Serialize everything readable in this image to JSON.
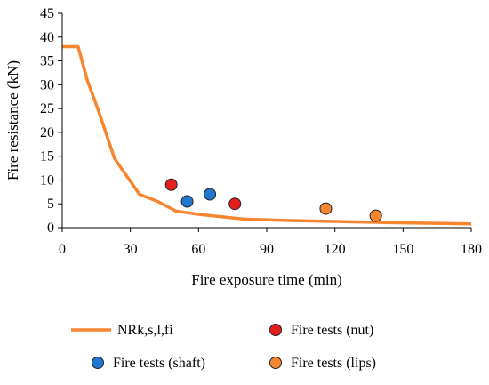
{
  "chart_data": {
    "type": "line",
    "title": "",
    "xlabel": "Fire exposure time (min)",
    "ylabel": "Fire resistance (kN)",
    "xlim": [
      0,
      180
    ],
    "ylim": [
      0,
      45
    ],
    "x_ticks": [
      "0",
      "30",
      "60",
      "90",
      "120",
      "150",
      "180"
    ],
    "y_ticks": [
      "0",
      "5",
      "10",
      "15",
      "20",
      "25",
      "30",
      "35",
      "40",
      "45"
    ],
    "grid": false,
    "legend_position": "bottom",
    "series": [
      {
        "name": "NRk,s,l,fi",
        "kind": "line",
        "color": "#f5852f",
        "points": [
          [
            0,
            38
          ],
          [
            7,
            38
          ],
          [
            11,
            31
          ],
          [
            16,
            24.5
          ],
          [
            23,
            14.5
          ],
          [
            34,
            7
          ],
          [
            42,
            5.5
          ],
          [
            50,
            3.5
          ],
          [
            60,
            2.8
          ],
          [
            80,
            1.8
          ],
          [
            100,
            1.5
          ],
          [
            120,
            1.3
          ],
          [
            150,
            1.0
          ],
          [
            180,
            0.8
          ]
        ]
      },
      {
        "name": "Fire tests (nut)",
        "kind": "scatter",
        "color": "#e41e1e",
        "points": [
          [
            48,
            9
          ],
          [
            76,
            5
          ]
        ]
      },
      {
        "name": "Fire tests (shaft)",
        "kind": "scatter",
        "color": "#1f77d0",
        "points": [
          [
            55,
            5.5
          ],
          [
            65,
            7
          ]
        ]
      },
      {
        "name": "Fire tests (lips)",
        "kind": "scatter",
        "color": "#f5852f",
        "points": [
          [
            116,
            4
          ],
          [
            138,
            2.5
          ]
        ]
      }
    ]
  }
}
